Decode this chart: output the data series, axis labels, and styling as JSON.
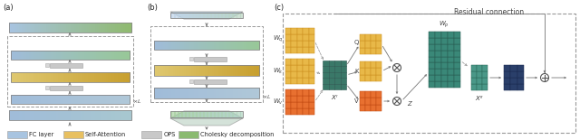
{
  "fig_width": 6.4,
  "fig_height": 1.55,
  "dpi": 100,
  "background": "#ffffff",
  "colors": {
    "fc_layer_blue": "#a8c4e0",
    "fc_layer_green": "#b0d4a0",
    "self_attention_left": "#e8d090",
    "self_attention_right": "#d4a840",
    "ops_gray": "#c8c8c8",
    "cholesky_green": "#8aba70",
    "trap_blue": "#a0bcd8",
    "trap_green": "#90c8a0",
    "teal_dark": "#3a7868",
    "teal_mid": "#4a9880",
    "orange_warm": "#e89030",
    "orange_dark": "#d06018",
    "dark_blue": "#2a3f6a",
    "mid_teal_small": "#5aaa90",
    "arrow_gray": "#777777",
    "dashed_color": "#999999",
    "text_color": "#333333"
  },
  "legend_items": [
    "FC layer",
    "Self-Attention",
    "OPS",
    "Cholesky decomposition"
  ],
  "legend_colors": [
    "#a8c4e0",
    "#e8c060",
    "#c8c8c8",
    "#8aba70"
  ]
}
